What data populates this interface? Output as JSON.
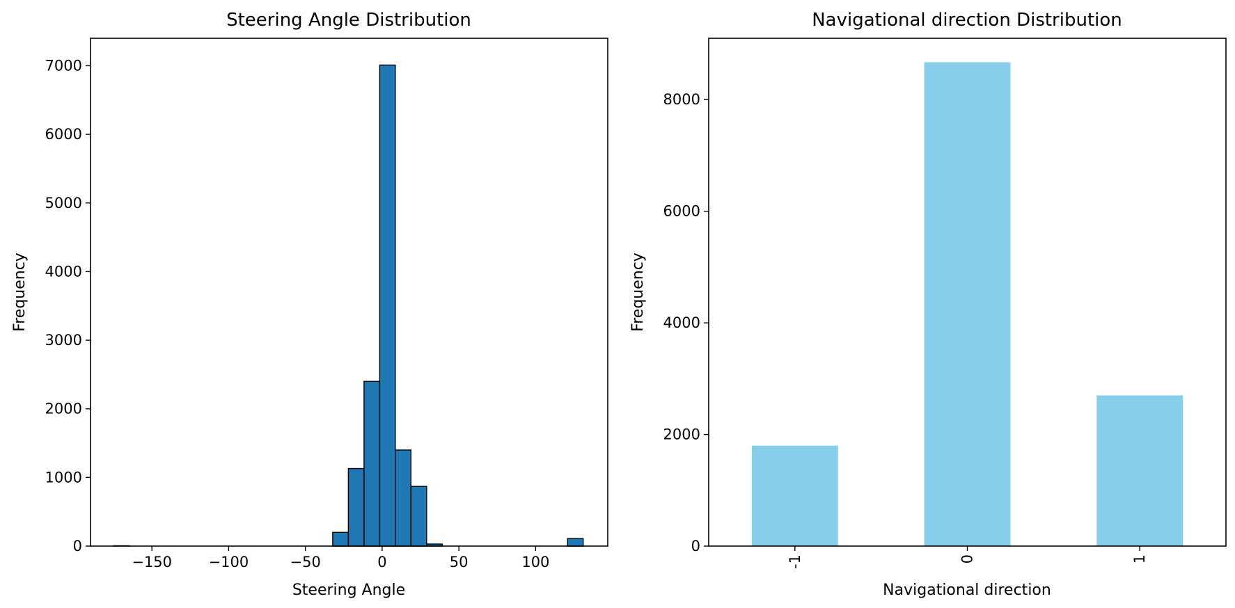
{
  "chart_data": [
    {
      "type": "bar",
      "subtype": "histogram",
      "title": "Steering Angle Distribution",
      "xlabel": "Steering Angle",
      "ylabel": "Frequency",
      "xlim": [
        -190,
        147
      ],
      "ylim": [
        0,
        7400
      ],
      "xticks": [
        -150,
        -100,
        -50,
        0,
        50,
        100
      ],
      "xtick_labels": [
        "−150",
        "−100",
        "−50",
        "0",
        "50",
        "100"
      ],
      "yticks": [
        0,
        1000,
        2000,
        3000,
        4000,
        5000,
        6000,
        7000
      ],
      "ytick_labels": [
        "0",
        "1000",
        "2000",
        "3000",
        "4000",
        "5000",
        "6000",
        "7000"
      ],
      "bin_edges": [
        -175.0,
        -164.8,
        -154.6,
        -144.4,
        -134.2,
        -124.0,
        -113.8,
        -103.6,
        -93.4,
        -83.2,
        -73.0,
        -62.8,
        -52.6,
        -42.4,
        -32.2,
        -22.0,
        -11.8,
        -1.6,
        8.6,
        18.8,
        29.0,
        39.2,
        49.4,
        59.6,
        69.8,
        80.0,
        90.2,
        100.4,
        110.6,
        120.8,
        131.0
      ],
      "values": [
        5,
        0,
        0,
        0,
        0,
        0,
        0,
        0,
        0,
        0,
        0,
        0,
        0,
        0,
        200,
        1130,
        2400,
        7010,
        1400,
        870,
        30,
        0,
        0,
        0,
        0,
        0,
        0,
        0,
        0,
        110
      ],
      "colors": {
        "bar_fill": "#1f77b4",
        "bar_edge": "#000000"
      }
    },
    {
      "type": "bar",
      "title": "Navigational direction Distribution",
      "xlabel": "Navigational direction",
      "ylabel": "Frequency",
      "categories": [
        "-1",
        "0",
        "1"
      ],
      "values": [
        1800,
        8670,
        2700
      ],
      "ylim": [
        0,
        9100
      ],
      "yticks": [
        0,
        2000,
        4000,
        6000,
        8000
      ],
      "ytick_labels": [
        "0",
        "2000",
        "4000",
        "6000",
        "8000"
      ],
      "xtick_rotation": "vertical",
      "colors": {
        "bar_fill": "#87ceeb"
      }
    }
  ]
}
